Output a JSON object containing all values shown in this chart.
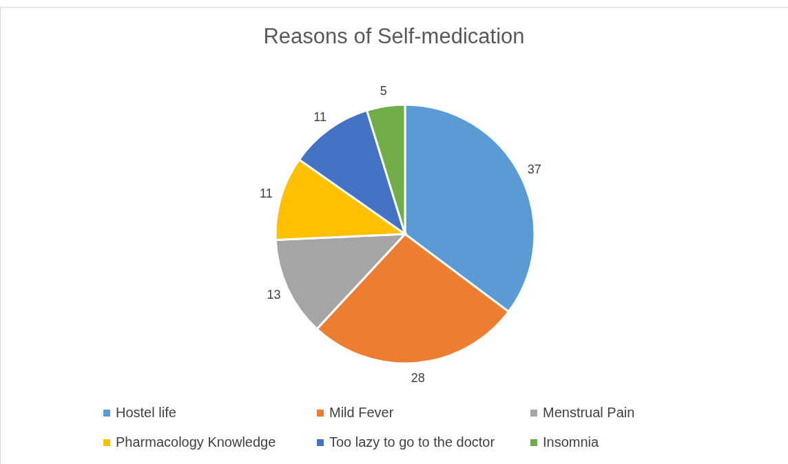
{
  "chart_data": {
    "type": "pie",
    "title": "Reasons of Self-medication",
    "categories": [
      "Hostel life",
      "Mild Fever",
      "Menstrual Pain",
      "Pharmacology Knowledge",
      "Too lazy to go to the doctor",
      "Insomnia"
    ],
    "values": [
      37,
      28,
      13,
      11,
      11,
      5
    ],
    "colors": [
      "#5b9bd5",
      "#ed7d31",
      "#a5a5a5",
      "#ffc000",
      "#4472c4",
      "#70ad47"
    ],
    "data_labels": true,
    "legend": "bottom"
  }
}
